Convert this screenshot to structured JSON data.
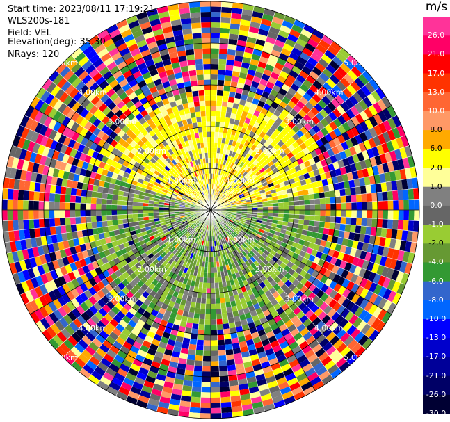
{
  "info": {
    "start_time": "Start time: 2023/08/11 17:19:21",
    "site": "WLS200s-181",
    "field": "Field: VEL",
    "elevation": "Elevation(deg): 35.30",
    "nrays": "NRays: 120"
  },
  "colorbar": {
    "unit": "m/s",
    "bins": [
      {
        "label": "26.0",
        "color": "#ff3399"
      },
      {
        "label": "21.0",
        "color": "#ff0066"
      },
      {
        "label": "17.0",
        "color": "#ff0000"
      },
      {
        "label": "13.0",
        "color": "#ff3300"
      },
      {
        "label": "10.0",
        "color": "#ff6633"
      },
      {
        "label": "8.0",
        "color": "#ff9966"
      },
      {
        "label": "6.0",
        "color": "#ffaa00"
      },
      {
        "label": "2.0",
        "color": "#ffff00"
      },
      {
        "label": "1.0",
        "color": "#ffff99"
      },
      {
        "label": "0.0",
        "color": "#808080"
      },
      {
        "label": "-1.0",
        "color": "#666666"
      },
      {
        "label": "-2.0",
        "color": "#99cc33"
      },
      {
        "label": "-4.0",
        "color": "#669933"
      },
      {
        "label": "-6.0",
        "color": "#339933"
      },
      {
        "label": "-8.0",
        "color": "#3366cc"
      },
      {
        "label": "-10.0",
        "color": "#0066ff"
      },
      {
        "label": "-13.0",
        "color": "#0000ff"
      },
      {
        "label": "-17.0",
        "color": "#0000cc"
      },
      {
        "label": "-21.0",
        "color": "#000099"
      },
      {
        "label": "-26.0",
        "color": "#000066"
      },
      {
        "label": "-30.0",
        "color": "#000033"
      }
    ]
  },
  "chart_data": {
    "type": "heatmap",
    "projection": "polar PPI",
    "field": "VEL",
    "range_rings_km": [
      1.0,
      2.0,
      3.0,
      4.0,
      5.0
    ],
    "ring_labels": [
      "1.00km",
      "2.00km",
      "3.00km",
      "4.00km",
      "5.00km"
    ],
    "azimuth_spokes_deg": [
      0,
      30,
      60,
      90,
      120,
      150,
      180,
      210,
      240,
      270,
      300,
      330
    ],
    "nrays": 120,
    "max_range_km": 5.0,
    "pattern_by_range_km": [
      {
        "range": [
          0.0,
          2.7
        ],
        "north_half": "yellow 1.0–6.0 m/s",
        "south_half": "green -1.0 to -6.0 m/s"
      },
      {
        "range": [
          2.7,
          5.0
        ],
        "all": "noise, full color scale"
      }
    ]
  }
}
